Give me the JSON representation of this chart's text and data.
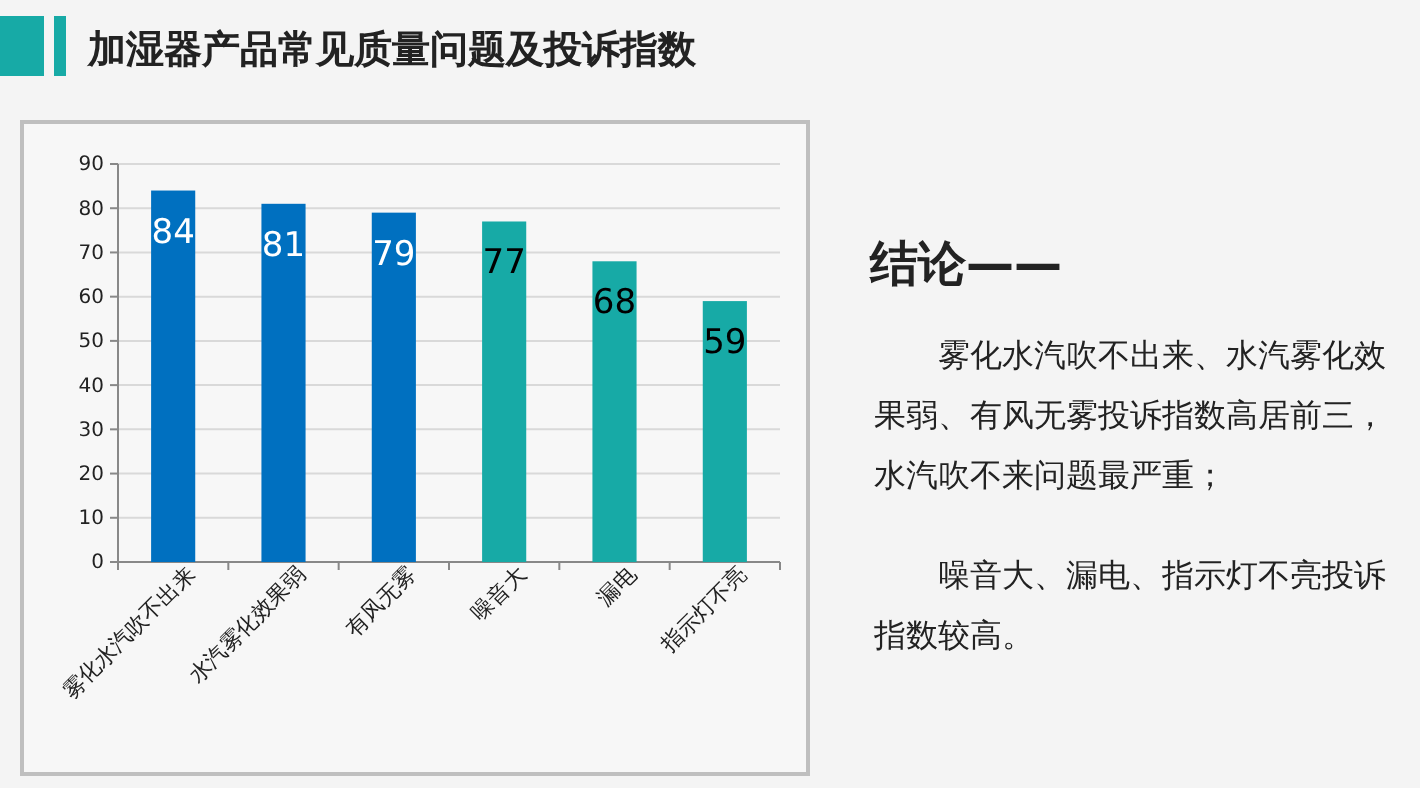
{
  "chart_data": [
    {
      "type": "bar",
      "title": "加湿器产品常见质量问题及投诉指数",
      "categories": [
        "雾化水汽吹不出来",
        "水汽雾化效果弱",
        "有风无雾",
        "噪音大",
        "漏电",
        "指示灯不亮"
      ],
      "values": [
        84,
        81,
        79,
        77,
        68,
        59
      ],
      "colors": [
        "#0070c0",
        "#0070c0",
        "#0070c0",
        "#17aaa6",
        "#17aaa6",
        "#17aaa6"
      ],
      "ylim": [
        0,
        90
      ],
      "yticks": [
        0,
        10,
        20,
        30,
        40,
        50,
        60,
        70,
        80,
        90
      ],
      "grid": "y",
      "data_labels": true
    },
    {
      "type": "other",
      "title": "结论——",
      "annotations": [
        "雾化水汽吹不出来、水汽雾化效果弱、有风无雾投诉指数高居前三，水汽吹不来问题最严重；",
        "噪音大、漏电、指示灯不亮投诉指数较高。"
      ]
    }
  ]
}
